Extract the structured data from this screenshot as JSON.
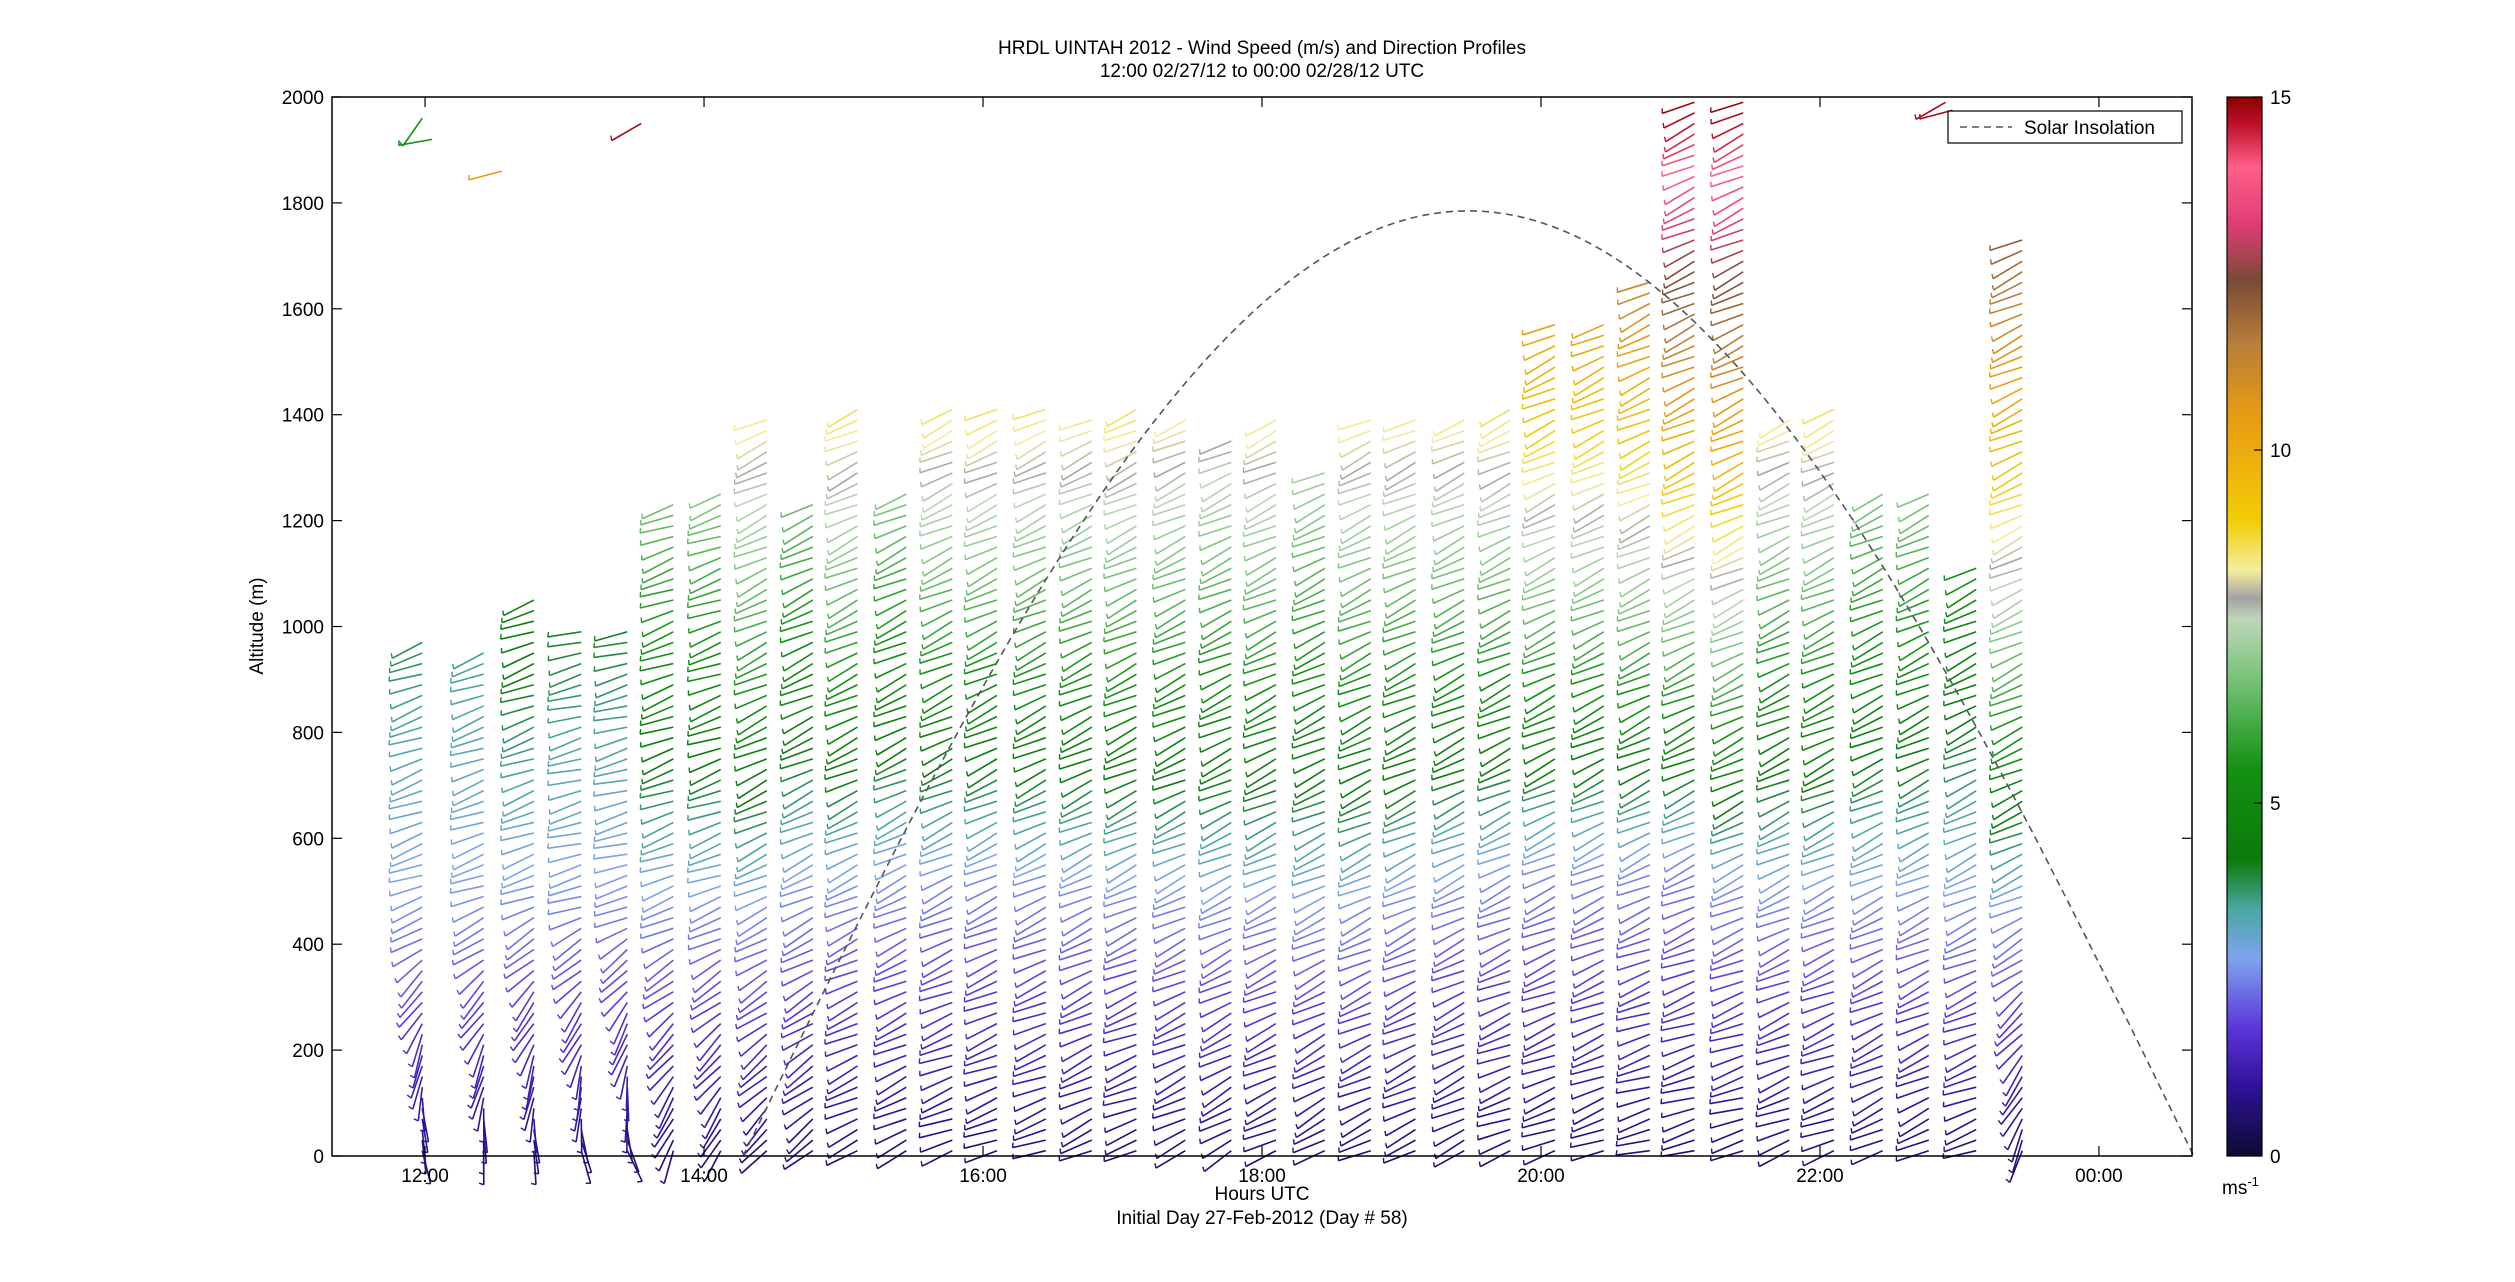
{
  "chart_data": {
    "type": "scatter",
    "title_line1": "HRDL UINTAH 2012 - Wind Speed (m/s) and Direction Profiles",
    "title_line2": "12:00 02/27/12 to 00:00 02/28/12  UTC",
    "xlabel": "Hours UTC",
    "xlabel2": "Initial Day 27-Feb-2012 (Day # 58)",
    "ylabel": "Altitude (m)",
    "xlim_hours": [
      11.333,
      24.667
    ],
    "ylim": [
      0,
      2000
    ],
    "x_ticks": [
      {
        "h": 12,
        "label": "12:00"
      },
      {
        "h": 14,
        "label": "14:00"
      },
      {
        "h": 16,
        "label": "16:00"
      },
      {
        "h": 18,
        "label": "18:00"
      },
      {
        "h": 20,
        "label": "20:00"
      },
      {
        "h": 22,
        "label": "22:00"
      },
      {
        "h": 24,
        "label": "00:00"
      }
    ],
    "y_ticks": [
      0,
      200,
      400,
      600,
      800,
      1000,
      1200,
      1400,
      1600,
      1800,
      2000
    ],
    "legend": {
      "label": "Solar Insolation",
      "placement": "top-right",
      "style": "dashed"
    },
    "solar_insolation": {
      "sunrise_h": 14.28,
      "sunset_h": 24.68,
      "peak_alt": 1785
    },
    "colorbar": {
      "range": [
        0,
        15
      ],
      "ticks": [
        0,
        5,
        10,
        15
      ],
      "unit_base": "ms",
      "unit_exp": "-1",
      "colormap": [
        {
          "v": 0,
          "c": "#0b0b30"
        },
        {
          "v": 1,
          "c": "#30129a"
        },
        {
          "v": 1.8,
          "c": "#5a35d8"
        },
        {
          "v": 2.8,
          "c": "#7ea4ee"
        },
        {
          "v": 3.5,
          "c": "#4aa7a0"
        },
        {
          "v": 4.2,
          "c": "#0b7a0b"
        },
        {
          "v": 5.5,
          "c": "#139213"
        },
        {
          "v": 6.8,
          "c": "#7cc47c"
        },
        {
          "v": 7.6,
          "c": "#bdd6b8"
        },
        {
          "v": 7.9,
          "c": "#a3a3a3"
        },
        {
          "v": 8.3,
          "c": "#f4ee9e"
        },
        {
          "v": 9.0,
          "c": "#f2cc05"
        },
        {
          "v": 10.5,
          "c": "#e89b12"
        },
        {
          "v": 11.5,
          "c": "#b77e3a"
        },
        {
          "v": 12.4,
          "c": "#7a4a36"
        },
        {
          "v": 13.2,
          "c": "#e03c73"
        },
        {
          "v": 14.0,
          "c": "#ff5f8a"
        },
        {
          "v": 14.6,
          "c": "#c0122b"
        },
        {
          "v": 15,
          "c": "#8a0000"
        }
      ]
    },
    "profiles": [
      {
        "t": 11.98,
        "top": 980,
        "bl": 470,
        "dir0": 160,
        "dir1": 250
      },
      {
        "t": 12.42,
        "top": 960,
        "bl": 480,
        "dir0": 170,
        "dir1": 250
      },
      {
        "t": 12.78,
        "top": 1050,
        "bl": 500,
        "dir0": 170,
        "dir1": 250
      },
      {
        "t": 13.12,
        "top": 1000,
        "bl": 500,
        "dir0": 165,
        "dir1": 255
      },
      {
        "t": 13.45,
        "top": 1000,
        "bl": 500,
        "dir0": 160,
        "dir1": 255
      },
      {
        "t": 13.78,
        "top": 1240,
        "bl": 480,
        "dir0": 200,
        "dir1": 250
      },
      {
        "t": 14.12,
        "top": 1260,
        "bl": 480,
        "dir0": 205,
        "dir1": 250
      },
      {
        "t": 14.45,
        "top": 1400,
        "bl": 470,
        "dir0": 220,
        "dir1": 245
      },
      {
        "t": 14.78,
        "top": 1230,
        "bl": 510,
        "dir0": 230,
        "dir1": 245
      },
      {
        "t": 15.1,
        "top": 1420,
        "bl": 520,
        "dir0": 245,
        "dir1": 245
      },
      {
        "t": 15.45,
        "top": 1260,
        "bl": 530,
        "dir0": 245,
        "dir1": 245
      },
      {
        "t": 15.78,
        "top": 1410,
        "bl": 540,
        "dir0": 250,
        "dir1": 245
      },
      {
        "t": 16.1,
        "top": 1420,
        "bl": 540,
        "dir0": 250,
        "dir1": 245
      },
      {
        "t": 16.45,
        "top": 1410,
        "bl": 530,
        "dir0": 250,
        "dir1": 245
      },
      {
        "t": 16.78,
        "top": 1400,
        "bl": 520,
        "dir0": 245,
        "dir1": 245
      },
      {
        "t": 17.1,
        "top": 1420,
        "bl": 510,
        "dir0": 250,
        "dir1": 245
      },
      {
        "t": 17.45,
        "top": 1390,
        "bl": 500,
        "dir0": 245,
        "dir1": 245
      },
      {
        "t": 17.78,
        "top": 1350,
        "bl": 490,
        "dir0": 240,
        "dir1": 245
      },
      {
        "t": 18.1,
        "top": 1400,
        "bl": 490,
        "dir0": 245,
        "dir1": 245
      },
      {
        "t": 18.45,
        "top": 1300,
        "bl": 470,
        "dir0": 240,
        "dir1": 245
      },
      {
        "t": 18.78,
        "top": 1400,
        "bl": 480,
        "dir0": 245,
        "dir1": 245
      },
      {
        "t": 19.1,
        "top": 1400,
        "bl": 500,
        "dir0": 245,
        "dir1": 245
      },
      {
        "t": 19.45,
        "top": 1400,
        "bl": 520,
        "dir0": 245,
        "dir1": 245
      },
      {
        "t": 19.78,
        "top": 1420,
        "bl": 540,
        "dir0": 250,
        "dir1": 245
      },
      {
        "t": 20.1,
        "top": 1580,
        "bl": 560,
        "dir0": 250,
        "dir1": 245
      },
      {
        "t": 20.45,
        "top": 1580,
        "bl": 560,
        "dir0": 250,
        "dir1": 245
      },
      {
        "t": 20.78,
        "top": 1660,
        "bl": 560,
        "dir0": 255,
        "dir1": 245
      },
      {
        "t": 21.1,
        "top": 1990,
        "bl": 580,
        "dir0": 255,
        "dir1": 245
      },
      {
        "t": 21.45,
        "top": 1990,
        "bl": 520,
        "dir0": 255,
        "dir1": 245
      },
      {
        "t": 21.78,
        "top": 1400,
        "bl": 510,
        "dir0": 250,
        "dir1": 245
      },
      {
        "t": 22.1,
        "top": 1420,
        "bl": 510,
        "dir0": 250,
        "dir1": 245
      },
      {
        "t": 22.45,
        "top": 1250,
        "bl": 500,
        "dir0": 245,
        "dir1": 245
      },
      {
        "t": 22.78,
        "top": 1250,
        "bl": 500,
        "dir0": 245,
        "dir1": 245
      },
      {
        "t": 23.12,
        "top": 1120,
        "bl": 480,
        "dir0": 250,
        "dir1": 245
      },
      {
        "t": 23.45,
        "top": 1740,
        "bl": 470,
        "dir0": 200,
        "dir1": 245
      }
    ],
    "isolated_barbs": [
      {
        "t": 11.98,
        "y": 1960,
        "v": 5.5,
        "dir": 215
      },
      {
        "t": 12.05,
        "y": 1920,
        "v": 5.5,
        "dir": 260
      },
      {
        "t": 12.55,
        "y": 1860,
        "v": 10.5,
        "dir": 255
      },
      {
        "t": 13.55,
        "y": 1950,
        "v": 14.8,
        "dir": 240
      },
      {
        "t": 22.9,
        "y": 1990,
        "v": 14.8,
        "dir": 240
      },
      {
        "t": 22.95,
        "y": 1975,
        "v": 14.8,
        "dir": 255
      }
    ]
  }
}
